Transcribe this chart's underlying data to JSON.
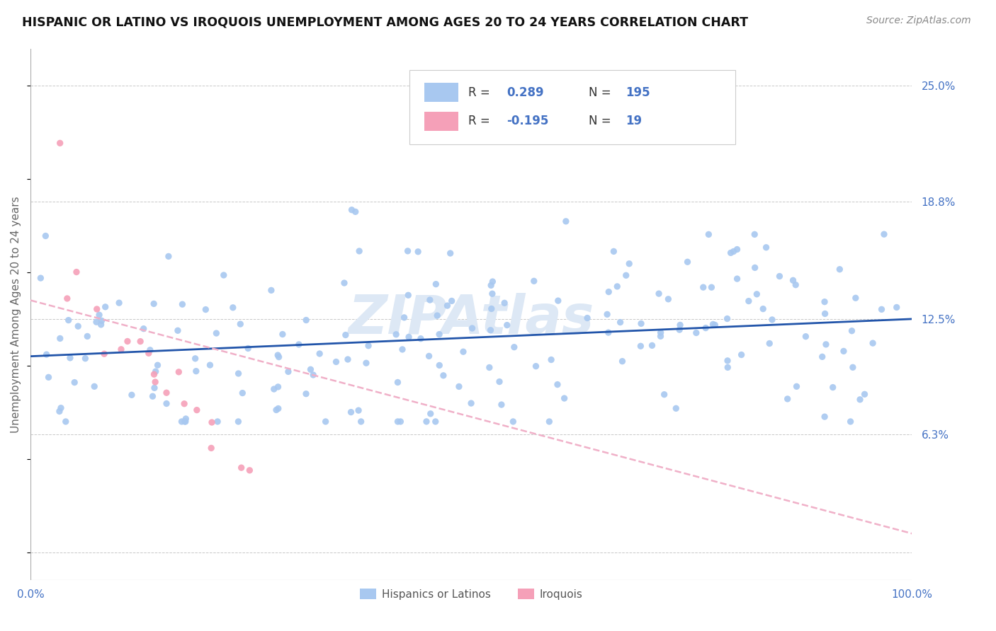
{
  "title": "HISPANIC OR LATINO VS IROQUOIS UNEMPLOYMENT AMONG AGES 20 TO 24 YEARS CORRELATION CHART",
  "source": "Source: ZipAtlas.com",
  "ylabel": "Unemployment Among Ages 20 to 24 years",
  "bg_color": "#ffffff",
  "grid_color": "#c8c8c8",
  "blue_scatter_color": "#a8c8f0",
  "pink_scatter_color": "#f5a0b8",
  "blue_line_color": "#2255aa",
  "pink_line_color": "#f0b0c8",
  "legend_blue_R": "0.289",
  "legend_blue_N": "195",
  "legend_pink_R": "-0.195",
  "legend_pink_N": "19",
  "text_color_blue": "#4472c4",
  "text_color_dark": "#333333",
  "text_color_gray": "#888888",
  "watermark_color": "#dde8f5",
  "ylim_min": -1.5,
  "ylim_max": 27.0,
  "xlim_min": 0,
  "xlim_max": 100,
  "ytick_positions": [
    0,
    6.3,
    12.5,
    18.8,
    25.0
  ],
  "ytick_labels": [
    "",
    "6.3%",
    "12.5%",
    "18.8%",
    "25.0%"
  ]
}
